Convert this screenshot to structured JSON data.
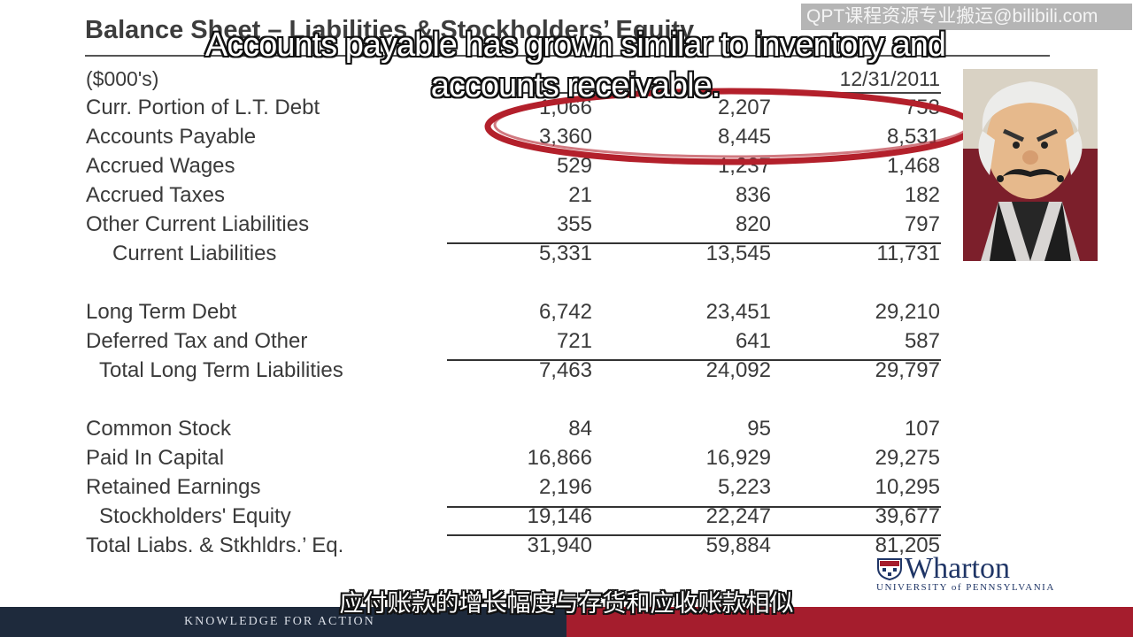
{
  "slide": {
    "title": "Balance Sheet – Liabilities & Stockholders’ Equity",
    "units": "($000's)",
    "last_col_header": "12/31/2011",
    "sections": [
      [
        {
          "label": "Curr. Portion of   L.T. Debt",
          "values": [
            "1,066",
            "2,207",
            "753"
          ],
          "indent": 0
        },
        {
          "label": "Accounts Payable",
          "values": [
            "3,360",
            "8,445",
            "8,531"
          ],
          "indent": 0
        },
        {
          "label": "Accrued Wages",
          "values": [
            "529",
            "1,237",
            "1,468"
          ],
          "indent": 0
        },
        {
          "label": "Accrued Taxes",
          "values": [
            "21",
            "836",
            "182"
          ],
          "indent": 0
        },
        {
          "label": "Other Current Liabilities",
          "values": [
            "355",
            "820",
            "797"
          ],
          "indent": 0
        },
        {
          "label": "Current Liabilities",
          "values": [
            "5,331",
            "13,545",
            "11,731"
          ],
          "indent": 1
        }
      ],
      [
        {
          "label": "Long Term Debt",
          "values": [
            "6,742",
            "23,451",
            "29,210"
          ],
          "indent": 0
        },
        {
          "label": "Deferred Tax and Other",
          "values": [
            "721",
            "641",
            "587"
          ],
          "indent": 0
        },
        {
          "label": "Total Long Term Liabilities",
          "values": [
            "7,463",
            "24,092",
            "29,797"
          ],
          "indent": 2
        }
      ],
      [
        {
          "label": "Common Stock",
          "values": [
            "84",
            "95",
            "107"
          ],
          "indent": 0
        },
        {
          "label": "Paid In Capital",
          "values": [
            "16,866",
            "16,929",
            "29,275"
          ],
          "indent": 0
        },
        {
          "label": "Retained Earnings",
          "values": [
            "2,196",
            "5,223",
            "10,295"
          ],
          "indent": 0
        },
        {
          "label": "Stockholders' Equity",
          "values": [
            "19,146",
            "22,247",
            "39,677"
          ],
          "indent": 2
        },
        {
          "label": "Total Liabs. & Stkhldrs.’ Eq.",
          "values": [
            "31,940",
            "59,884",
            "81,205"
          ],
          "indent": 0
        }
      ]
    ]
  },
  "captions": {
    "english": "Accounts payable has grown similar to inventory and accounts receivable.",
    "chinese": "应付账款的增长幅度与存货和应收账款相似"
  },
  "watermark": "QPT课程资源专业搬运@bilibili.com",
  "branding": {
    "logo_name": "Wharton",
    "logo_sub": "UNIVERSITY of PENNSYLVANIA",
    "tagline": "KNOWLEDGE FOR ACTION"
  },
  "colors": {
    "highlight_ellipse": "#b3202b",
    "footer_navy": "#1e2a3c",
    "footer_red": "#a51d2d",
    "logo_blue": "#1f3566"
  },
  "icons": {
    "presenter": "cartoon-presenter-avatar",
    "logo": "wharton-shield-icon"
  }
}
